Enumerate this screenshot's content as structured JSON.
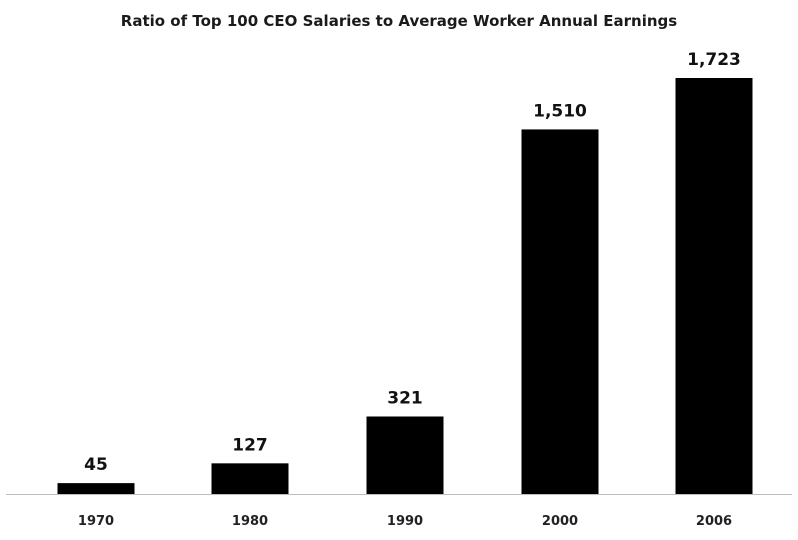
{
  "chart_data": {
    "type": "bar",
    "title": "Ratio of Top 100 CEO Salaries to Average Worker Annual Earnings",
    "xlabel": "",
    "ylabel": "",
    "categories": [
      "1970",
      "1980",
      "1990",
      "2000",
      "2006"
    ],
    "values": [
      45,
      127,
      321,
      1510,
      1723
    ],
    "value_labels": [
      "45",
      "127",
      "321",
      "1,510",
      "1,723"
    ],
    "ylim": [
      0,
      1800
    ],
    "grid": false,
    "legend": "none",
    "colors": {
      "bar": "#000000",
      "axis": "#bdbdbd",
      "background": "#ffffff"
    }
  }
}
